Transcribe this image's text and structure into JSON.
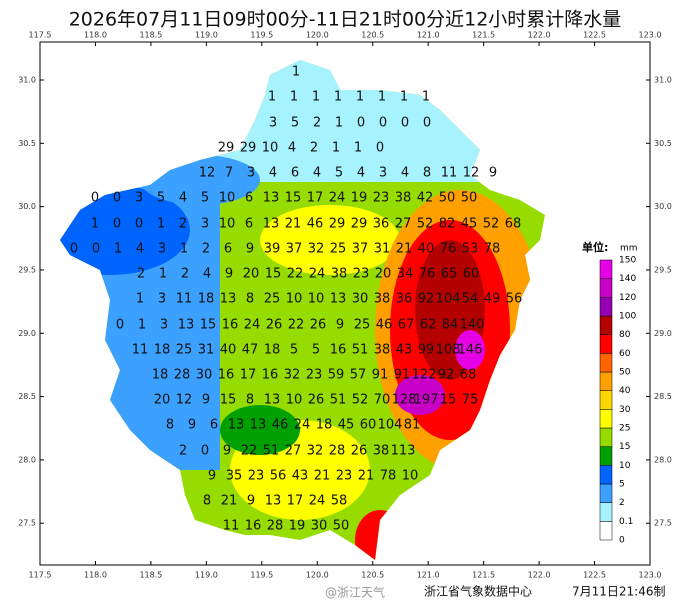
{
  "title": "2026年07月11日09时00分-11日21时00分近12小时累计降水量",
  "map": {
    "xlim": [
      117.5,
      123.0
    ],
    "ylim": [
      27.17,
      31.3
    ],
    "xticks": [
      117.5,
      {
        "value": 118.0,
        "label": "118.0"
      },
      118.5,
      {
        "value": 119.0,
        "label": "119.0"
      },
      119.5,
      {
        "value": 120.0,
        "label": "120.0"
      },
      120.5,
      {
        "value": 121.0,
        "label": "121.0"
      },
      121.5,
      {
        "value": 122.0,
        "label": "122.0"
      },
      122.5,
      {
        "value": 123.0,
        "label": "123.0"
      }
    ],
    "yticks": [
      {
        "value": 31.0,
        "label": "31.0"
      },
      30.5,
      {
        "value": 30.0,
        "label": "30.0"
      },
      29.5,
      {
        "value": 29.0,
        "label": "29.0"
      },
      28.5,
      {
        "value": 28.0,
        "label": "28.0"
      },
      27.5
    ],
    "stations": [
      [
        1
      ],
      [
        1,
        1,
        1,
        1,
        1,
        1,
        1,
        1
      ],
      [
        3,
        5,
        2,
        1,
        0,
        0,
        0,
        0
      ],
      [
        29,
        29,
        10,
        4,
        2,
        1,
        1,
        0
      ],
      [
        12,
        7,
        3,
        4,
        6,
        4,
        5,
        4,
        3,
        4,
        8,
        11,
        12,
        9
      ],
      [
        0,
        0,
        3,
        5,
        4,
        5,
        10,
        6,
        13,
        15,
        17,
        24,
        19,
        23,
        38,
        42,
        50,
        50
      ],
      [
        1,
        0,
        0,
        1,
        2,
        3,
        10,
        6,
        13,
        21,
        46,
        29,
        29,
        36,
        27,
        52,
        82,
        45,
        52,
        68
      ],
      [
        0,
        0,
        1,
        4,
        3,
        1,
        2,
        6,
        9,
        39,
        37,
        32,
        25,
        37,
        31,
        21,
        40,
        76,
        53,
        78
      ],
      [
        2,
        1,
        2,
        4,
        9,
        20,
        15,
        22,
        24,
        38,
        23,
        20,
        34,
        76,
        65,
        60
      ],
      [
        1,
        3,
        11,
        18,
        13,
        8,
        25,
        10,
        10,
        13,
        30,
        38,
        36,
        92,
        104,
        54,
        49,
        56
      ],
      [
        0,
        1,
        3,
        13,
        15,
        16,
        24,
        26,
        22,
        26,
        9,
        25,
        46,
        67,
        62,
        84,
        140
      ],
      [
        11,
        18,
        25,
        31,
        40,
        47,
        18,
        5,
        5,
        16,
        51,
        38,
        43,
        99,
        108,
        146
      ],
      [
        18,
        28,
        30,
        16,
        17,
        16,
        32,
        23,
        59,
        57,
        91,
        91,
        122,
        92,
        68
      ],
      [
        20,
        12,
        9,
        15,
        8,
        13,
        10,
        26,
        51,
        52,
        70,
        128,
        197,
        15,
        75
      ],
      [
        8,
        9,
        6,
        13,
        13,
        46,
        24,
        18,
        45,
        60,
        104,
        81
      ],
      [
        2,
        0,
        9,
        22,
        51,
        27,
        32,
        28,
        26,
        38,
        113
      ],
      [
        9,
        35,
        23,
        56,
        43,
        21,
        23,
        21,
        78,
        10
      ],
      [
        8,
        21,
        9,
        13,
        17,
        24,
        58
      ],
      [
        11,
        16,
        28,
        19,
        30,
        50
      ]
    ]
  },
  "legend": {
    "title": "单位:",
    "unit": "mm",
    "levels": [
      0,
      0.1,
      2,
      5,
      10,
      15,
      25,
      30,
      40,
      50,
      60,
      80,
      100,
      120,
      140,
      150
    ],
    "colors": [
      "#ffffff",
      "#a6f2ff",
      "#3ca0ff",
      "#0064ff",
      "#00a000",
      "#96dc00",
      "#ffff00",
      "#ffd700",
      "#ffa000",
      "#ff6400",
      "#ff0000",
      "#b40000",
      "#9600b4",
      "#c800c8",
      "#e600e6"
    ]
  },
  "footer": {
    "source": "浙江省气象数据中心",
    "time": "7月11日21:46制",
    "watermark": "@浙江天气"
  }
}
